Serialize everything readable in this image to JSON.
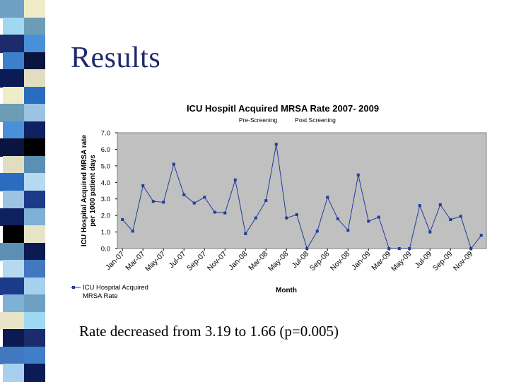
{
  "slide": {
    "title": "Results",
    "caption": "Rate decreased from 3.19 to 1.66 (p=0.005)"
  },
  "stripe_colors": [
    "#6fa0c4",
    "#9fd8f0",
    "#1b2b6c",
    "#3d7fc8",
    "#0c1b55",
    "#f0ecc8",
    "#6d9db6",
    "#4a90d9",
    "#0a1440",
    "#e2ddc0",
    "#2a6cc0",
    "#9cc3e2",
    "#0f2160",
    "#000000",
    "#5b8fb3",
    "#b6d9f2",
    "#1c3a8a",
    "#7fb0d6",
    "#e8e4c8",
    "#0b1a50",
    "#4178c0",
    "#a7d0ee"
  ],
  "chart_data": {
    "type": "line",
    "title": "ICU Hospitl Acquired MRSA Rate 2007- 2009",
    "annotations": [
      "Pre-Screening",
      "Post Screening"
    ],
    "ylabel": "ICU Hospital Acquired MRSA rate per 1000 patient days",
    "ylabel_lines": [
      "ICU Hospital Acquired MRSA rate",
      "per 1000 patient days"
    ],
    "xlabel": "Month",
    "ylim": [
      0,
      7
    ],
    "yticks": [
      "0.0",
      "1.0",
      "2.0",
      "3.0",
      "4.0",
      "5.0",
      "6.0",
      "7.0"
    ],
    "grid": false,
    "legend": [
      "ICU Hospital Acquired",
      "MRSA Rate"
    ],
    "tick_labels": [
      "Jan-07",
      "Mar-07",
      "May-07",
      "Jul-07",
      "Sep-07",
      "Nov-07",
      "Jan-08",
      "Mar-08",
      "May-08",
      "Jul-08",
      "Sep-08",
      "Nov-08",
      "Jan-09",
      "Mar-09",
      "May-09",
      "Jul-09",
      "Sep-09",
      "Nov-09"
    ],
    "series": [
      {
        "name": "ICU Hospital Acquired MRSA Rate",
        "values": [
          1.75,
          1.05,
          3.8,
          2.85,
          2.8,
          5.1,
          3.25,
          2.75,
          3.1,
          2.2,
          2.15,
          4.15,
          0.9,
          1.85,
          2.9,
          6.3,
          1.85,
          2.05,
          0.0,
          1.05,
          3.1,
          1.8,
          1.1,
          4.45,
          1.65,
          1.9,
          0.0,
          0.0,
          0.0,
          2.6,
          1.0,
          2.65,
          1.75,
          1.95,
          0.0,
          0.8
        ]
      }
    ]
  }
}
